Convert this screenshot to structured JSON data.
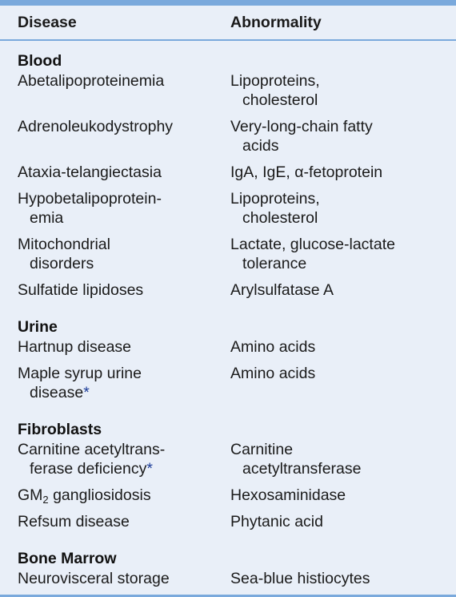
{
  "header": {
    "disease": "Disease",
    "abnormality": "Abnormality"
  },
  "sections": {
    "blood": {
      "title": "Blood",
      "rows": [
        {
          "disease": [
            "Abetalipoproteinemia"
          ],
          "abnormality": [
            "Lipoproteins,",
            "cholesterol"
          ]
        },
        {
          "disease": [
            "Adrenoleukodystrophy"
          ],
          "abnormality": [
            "Very-long-chain fatty",
            "acids"
          ]
        },
        {
          "disease": [
            "Ataxia-telangiectasia"
          ],
          "abnormality": [
            "IgA, IgE, α-fetoprotein"
          ]
        },
        {
          "disease": [
            "Hypobetalipoprotein-",
            "emia"
          ],
          "abnormality": [
            "Lipoproteins,",
            "cholesterol"
          ]
        },
        {
          "disease": [
            "Mitochondrial",
            "disorders"
          ],
          "abnormality": [
            "Lactate, glucose-lactate",
            "tolerance"
          ]
        },
        {
          "disease": [
            "Sulfatide lipidoses"
          ],
          "abnormality": [
            "Arylsulfatase A"
          ]
        }
      ]
    },
    "urine": {
      "title": "Urine",
      "rows": [
        {
          "disease": [
            "Hartnup disease"
          ],
          "abnormality": [
            "Amino acids"
          ]
        },
        {
          "disease": [
            "Maple syrup urine",
            "disease"
          ],
          "disease_marker": "*",
          "abnormality": [
            "Amino acids"
          ]
        }
      ]
    },
    "fibroblasts": {
      "title": "Fibroblasts",
      "rows": [
        {
          "disease": [
            "Carnitine acetyltrans-",
            "ferase deficiency"
          ],
          "disease_marker": "*",
          "abnormality": [
            "Carnitine",
            "acetyltransferase"
          ]
        },
        {
          "disease_main": "GM",
          "disease_sub": "2",
          "disease_rest": " gangliosidosis",
          "abnormality": [
            "Hexosaminidase"
          ]
        },
        {
          "disease": [
            "Refsum disease"
          ],
          "abnormality": [
            "Phytanic acid"
          ]
        }
      ]
    },
    "bone_marrow": {
      "title": "Bone Marrow",
      "rows": [
        {
          "disease": [
            "Neurovisceral storage"
          ],
          "abnormality": [
            "Sea-blue histiocytes"
          ]
        }
      ]
    }
  },
  "colors": {
    "background": "#e9eff8",
    "rule": "#7aa9dc",
    "marker": "#1f3f9a"
  }
}
